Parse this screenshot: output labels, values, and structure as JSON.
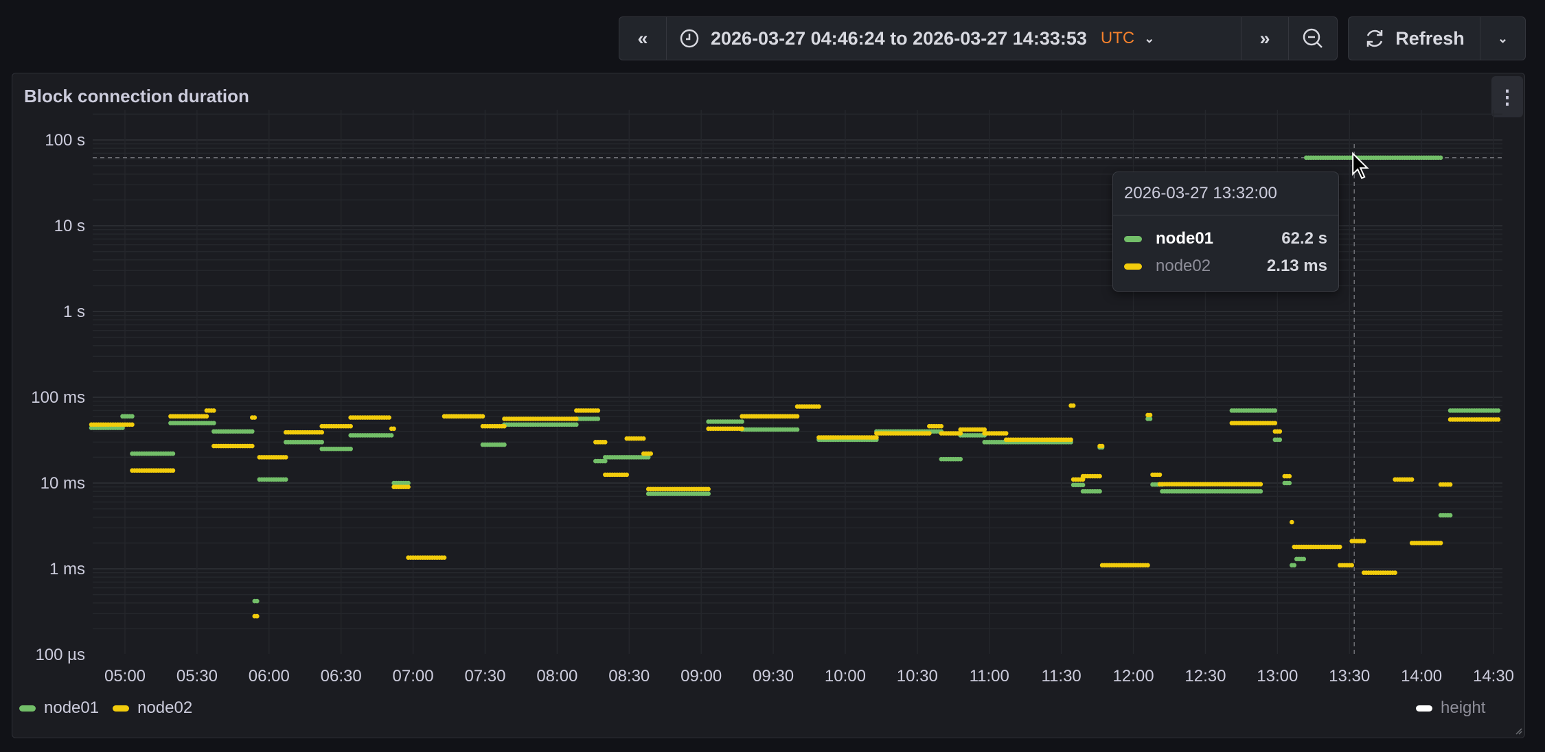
{
  "toolbar": {
    "shift_back_icon": "double-chevron-left",
    "time_range": "2026-03-27 04:46:24 to 2026-03-27 14:33:53",
    "timezone": "UTC",
    "shift_forward_icon": "double-chevron-right",
    "zoom_out_icon": "zoom-out",
    "refresh_label": "Refresh",
    "accent_color": "#f5812c"
  },
  "panel": {
    "title": "Block connection duration",
    "menu_icon": "kebab-vertical"
  },
  "tooltip": {
    "time": "2026-03-27 13:32:00",
    "rows": [
      {
        "name": "node01",
        "value": "62.2 s"
      },
      {
        "name": "node02",
        "value": "2.13 ms"
      }
    ]
  },
  "legend": {
    "items": [
      {
        "name": "node01",
        "color": "#73bf69"
      },
      {
        "name": "node02",
        "color": "#f2cc0c"
      }
    ],
    "right_item": {
      "name": "height",
      "color": "#ffffff"
    }
  },
  "chart_data": {
    "type": "scatter",
    "title": "Block connection duration",
    "xlabel": "",
    "ylabel": "",
    "x_range": [
      "04:46:24",
      "14:33:53"
    ],
    "x_ticks": [
      "05:00",
      "05:30",
      "06:00",
      "06:30",
      "07:00",
      "07:30",
      "08:00",
      "08:30",
      "09:00",
      "09:30",
      "10:00",
      "10:30",
      "11:00",
      "11:30",
      "12:00",
      "12:30",
      "13:00",
      "13:30",
      "14:00",
      "14:30"
    ],
    "y_scale": "log",
    "ylim_seconds": [
      0.0001,
      100
    ],
    "y_ticks": [
      {
        "label": "100 s",
        "value": 100
      },
      {
        "label": "10 s",
        "value": 10
      },
      {
        "label": "1 s",
        "value": 1
      },
      {
        "label": "100 ms",
        "value": 0.1
      },
      {
        "label": "10 ms",
        "value": 0.01
      },
      {
        "label": "1 ms",
        "value": 0.001
      },
      {
        "label": "100 µs",
        "value": 0.0001
      }
    ],
    "crosshair_time": "13:32",
    "threshold_seconds": 62.2,
    "series": [
      {
        "name": "node01",
        "color": "#73bf69",
        "unit": "ms",
        "segments": [
          [
            "04:46",
            "04:59",
            44
          ],
          [
            "04:59",
            "05:03",
            60
          ],
          [
            "05:03",
            "05:20",
            22
          ],
          [
            "05:19",
            "05:37",
            50
          ],
          [
            "05:37",
            "05:53",
            40
          ],
          [
            "05:54",
            "05:55",
            0.42
          ],
          [
            "05:56",
            "06:07",
            11
          ],
          [
            "06:07",
            "06:22",
            30
          ],
          [
            "06:22",
            "06:34",
            25
          ],
          [
            "06:34",
            "06:51",
            36
          ],
          [
            "06:52",
            "06:58",
            10
          ],
          [
            "07:29",
            "07:38",
            28
          ],
          [
            "07:38",
            "08:08",
            48
          ],
          [
            "08:08",
            "08:17",
            56
          ],
          [
            "08:16",
            "08:20",
            18
          ],
          [
            "08:20",
            "08:38",
            20
          ],
          [
            "08:38",
            "09:03",
            7.5
          ],
          [
            "09:03",
            "09:17",
            52
          ],
          [
            "09:17",
            "09:40",
            42
          ],
          [
            "09:49",
            "10:13",
            32
          ],
          [
            "10:13",
            "10:40",
            40
          ],
          [
            "10:40",
            "10:48",
            19
          ],
          [
            "10:48",
            "10:58",
            36
          ],
          [
            "10:58",
            "11:34",
            30
          ],
          [
            "11:35",
            "11:39",
            9.5
          ],
          [
            "11:39",
            "11:46",
            8
          ],
          [
            "11:46",
            "11:47",
            26
          ],
          [
            "12:06",
            "12:07",
            56
          ],
          [
            "12:08",
            "12:12",
            9.6
          ],
          [
            "12:12",
            "12:53",
            8
          ],
          [
            "12:41",
            "12:59",
            70
          ],
          [
            "12:59",
            "13:01",
            32
          ],
          [
            "13:03",
            "13:05",
            10
          ],
          [
            "13:06",
            "13:07",
            1.1
          ],
          [
            "13:08",
            "13:11",
            1.3
          ],
          [
            "13:12",
            "14:08",
            62200
          ],
          [
            "14:08",
            "14:12",
            4.2
          ],
          [
            "14:12",
            "14:32",
            70
          ]
        ]
      },
      {
        "name": "node02",
        "color": "#f2cc0c",
        "unit": "ms",
        "segments": [
          [
            "04:46",
            "05:03",
            48
          ],
          [
            "05:03",
            "05:20",
            14
          ],
          [
            "05:19",
            "05:34",
            60
          ],
          [
            "05:34",
            "05:37",
            70
          ],
          [
            "05:37",
            "05:53",
            27
          ],
          [
            "05:53",
            "05:54",
            58
          ],
          [
            "05:54",
            "05:55",
            0.28
          ],
          [
            "05:56",
            "06:07",
            20
          ],
          [
            "06:07",
            "06:22",
            39
          ],
          [
            "06:22",
            "06:34",
            46
          ],
          [
            "06:34",
            "06:50",
            58
          ],
          [
            "06:51",
            "06:52",
            43
          ],
          [
            "06:52",
            "06:58",
            9
          ],
          [
            "06:58",
            "07:13",
            1.35
          ],
          [
            "07:13",
            "07:29",
            60
          ],
          [
            "07:29",
            "07:38",
            46
          ],
          [
            "07:38",
            "08:08",
            56
          ],
          [
            "08:08",
            "08:17",
            70
          ],
          [
            "08:16",
            "08:20",
            30
          ],
          [
            "08:20",
            "08:29",
            12.5
          ],
          [
            "08:29",
            "08:36",
            33
          ],
          [
            "08:36",
            "08:39",
            22
          ],
          [
            "08:38",
            "09:03",
            8.5
          ],
          [
            "09:03",
            "09:17",
            43
          ],
          [
            "09:17",
            "09:40",
            60
          ],
          [
            "09:40",
            "09:49",
            78
          ],
          [
            "09:49",
            "10:13",
            34
          ],
          [
            "10:13",
            "10:35",
            38
          ],
          [
            "10:35",
            "10:40",
            46
          ],
          [
            "10:40",
            "10:48",
            38
          ],
          [
            "10:48",
            "10:58",
            42
          ],
          [
            "10:58",
            "11:07",
            38
          ],
          [
            "11:07",
            "11:34",
            32
          ],
          [
            "11:34",
            "11:35",
            80
          ],
          [
            "11:35",
            "11:39",
            11
          ],
          [
            "11:39",
            "11:46",
            12
          ],
          [
            "11:46",
            "11:47",
            27
          ],
          [
            "11:47",
            "12:06",
            1.1
          ],
          [
            "12:06",
            "12:07",
            62
          ],
          [
            "12:08",
            "12:11",
            12.5
          ],
          [
            "12:11",
            "12:53",
            9.7
          ],
          [
            "12:41",
            "12:59",
            50
          ],
          [
            "12:59",
            "13:01",
            40
          ],
          [
            "13:03",
            "13:05",
            12
          ],
          [
            "13:06",
            "13:06",
            3.5
          ],
          [
            "13:07",
            "13:26",
            1.8
          ],
          [
            "13:26",
            "13:31",
            1.1
          ],
          [
            "13:31",
            "13:36",
            2.1
          ],
          [
            "13:36",
            "13:49",
            0.9
          ],
          [
            "13:49",
            "13:56",
            11
          ],
          [
            "13:56",
            "14:08",
            2
          ],
          [
            "14:08",
            "14:12",
            9.6
          ],
          [
            "14:12",
            "14:32",
            55
          ]
        ]
      }
    ]
  }
}
